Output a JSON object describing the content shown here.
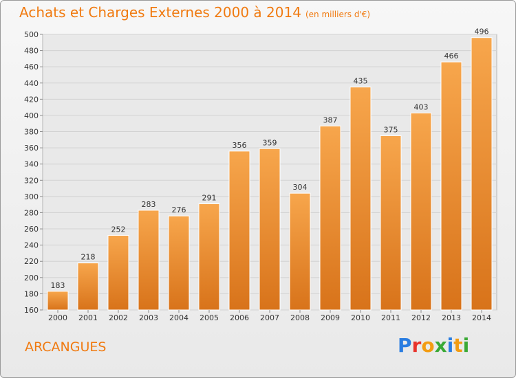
{
  "page_title": "Achats et Charges Externes 2000 à 2014",
  "unit_label": "(en milliers d'€)",
  "location": "ARCANGUES",
  "logo": {
    "text": "Proxiti",
    "colors": [
      "#2a7de1",
      "#e8322b",
      "#f39c12",
      "#3aa935",
      "#2a7de1",
      "#f39c12",
      "#3aa935"
    ]
  },
  "chart_data": {
    "type": "bar",
    "title": "Achats et Charges Externes 2000 à 2014",
    "subtitle": "(en milliers d'€)",
    "categories": [
      "2000",
      "2001",
      "2002",
      "2003",
      "2004",
      "2005",
      "2006",
      "2007",
      "2008",
      "2009",
      "2010",
      "2011",
      "2012",
      "2013",
      "2014"
    ],
    "values": [
      183,
      218,
      252,
      283,
      276,
      291,
      356,
      359,
      304,
      387,
      435,
      375,
      403,
      466,
      496
    ],
    "ylim": [
      160,
      500
    ],
    "yticks": [
      160,
      180,
      200,
      220,
      240,
      260,
      280,
      300,
      320,
      340,
      360,
      380,
      400,
      420,
      440,
      460,
      480,
      500
    ],
    "grid": true,
    "bar_color": "#f0902a"
  }
}
